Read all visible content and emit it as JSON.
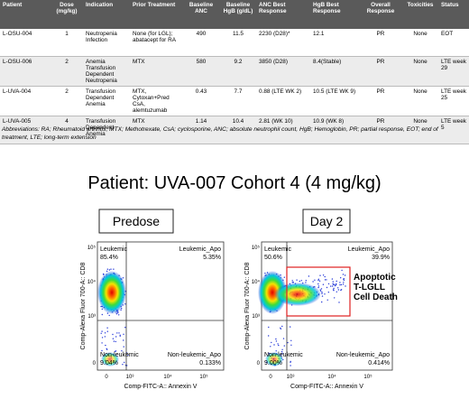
{
  "table": {
    "headers": [
      "Patient",
      "Dose (mg/kg)",
      "Indication",
      "Prior Treatment",
      "Baseline ANC",
      "Baseline HgB (g/dL)",
      "ANC Best Response",
      "HgB Best Response",
      "Overall Response",
      "Toxicities",
      "Status"
    ],
    "rows": [
      [
        "L-OSU-004",
        "1",
        "Neutropenia Infection",
        "None (for LGL); abatacept for RA",
        "490",
        "11.5",
        "2230 (D28)*",
        "12.1",
        "PR",
        "None",
        "EOT"
      ],
      [
        "L-OSU-006",
        "2",
        "Anemia Transfusion Dependent Neutropenia",
        "MTX",
        "580",
        "9.2",
        "3850 (D28)",
        "8.4(Stable)",
        "PR",
        "None",
        "LTE week 29"
      ],
      [
        "L-UVA-004",
        "2",
        "Transfusion Dependent Anemia",
        "MTX, Cytoxan+Pred CsA, alemtuzumab",
        "0.43",
        "7.7",
        "0.88 (LTE WK 2)",
        "10.5 (LTE WK 9)",
        "PR",
        "None",
        "LTE week 25"
      ],
      [
        "L-UVA-005",
        "4",
        "Transfusion Dependent Anemia",
        "MTX",
        "1.14",
        "10.4",
        "2.81 (WK 10)",
        "10.9 (WK 8)",
        "PR",
        "None",
        "LTE week 5"
      ]
    ]
  },
  "abbreviations": "Abbreviations: RA; Rheumatoid arthritis, MTX; Methotrexate, CsA; cyclosporine, ANC; absolute neutrophil count, HgB; Hemoglobin, PR; partial response, EOT; end of treatment, LTE; long-term extension",
  "title": "Patient: UVA-007 Cohort 4 (4 mg/kg)",
  "panels": [
    {
      "label": "Predose",
      "quadrants": [
        {
          "name": "Leukemic",
          "percent": "85.4%"
        },
        {
          "name": "Leukemic_Apo",
          "percent": "5.35%"
        },
        {
          "name": "Non-leukemic",
          "percent": "9.04%"
        },
        {
          "name": "Non-leukemic_Apo",
          "percent": "0.133%"
        }
      ]
    },
    {
      "label": "Day 2",
      "quadrants": [
        {
          "name": "Leukemic",
          "percent": "50.6%"
        },
        {
          "name": "Leukemic_Apo",
          "percent": "39.9%"
        },
        {
          "name": "Non-leukemic",
          "percent": "9.00%"
        },
        {
          "name": "Non-leukemic_Apo",
          "percent": "0.414%"
        }
      ]
    }
  ],
  "y_axis_label": "Comp-Alexa Fluor 700-A:: CD8",
  "x_axis_label": "Comp-FITC-A:: Annexin V",
  "ticks": [
    "0",
    "10³",
    "10⁴",
    "10⁵"
  ],
  "annotation": [
    "Apoptotic",
    "T-LGLL",
    "Cell Death"
  ]
}
